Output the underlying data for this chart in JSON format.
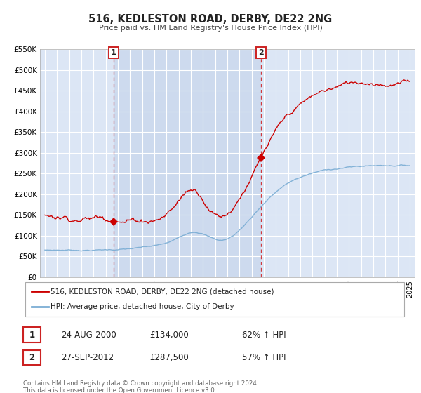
{
  "title": "516, KEDLESTON ROAD, DERBY, DE22 2NG",
  "subtitle": "Price paid vs. HM Land Registry's House Price Index (HPI)",
  "background_color": "#ffffff",
  "plot_bg_color": "#dce6f5",
  "grid_color": "#ffffff",
  "shade_color": "#cddaee",
  "legend_label_red": "516, KEDLESTON ROAD, DERBY, DE22 2NG (detached house)",
  "legend_label_blue": "HPI: Average price, detached house, City of Derby",
  "red_color": "#cc0000",
  "blue_color": "#7aadd4",
  "marker1_year": 2000.646,
  "marker1_value": 134000,
  "marker2_year": 2012.745,
  "marker2_value": 287500,
  "vline1_year": 2000.646,
  "vline2_year": 2012.745,
  "annotation1": {
    "label": "1",
    "date": "24-AUG-2000",
    "price": "£134,000",
    "pct": "62% ↑ HPI"
  },
  "annotation2": {
    "label": "2",
    "date": "27-SEP-2012",
    "price": "£287,500",
    "pct": "57% ↑ HPI"
  },
  "footer": "Contains HM Land Registry data © Crown copyright and database right 2024.\nThis data is licensed under the Open Government Licence v3.0.",
  "ylim": [
    0,
    550000
  ],
  "xlim_start": 1994.6,
  "xlim_end": 2025.4,
  "yticks": [
    0,
    50000,
    100000,
    150000,
    200000,
    250000,
    300000,
    350000,
    400000,
    450000,
    500000,
    550000
  ],
  "ytick_labels": [
    "£0",
    "£50K",
    "£100K",
    "£150K",
    "£200K",
    "£250K",
    "£300K",
    "£350K",
    "£400K",
    "£450K",
    "£500K",
    "£550K"
  ]
}
